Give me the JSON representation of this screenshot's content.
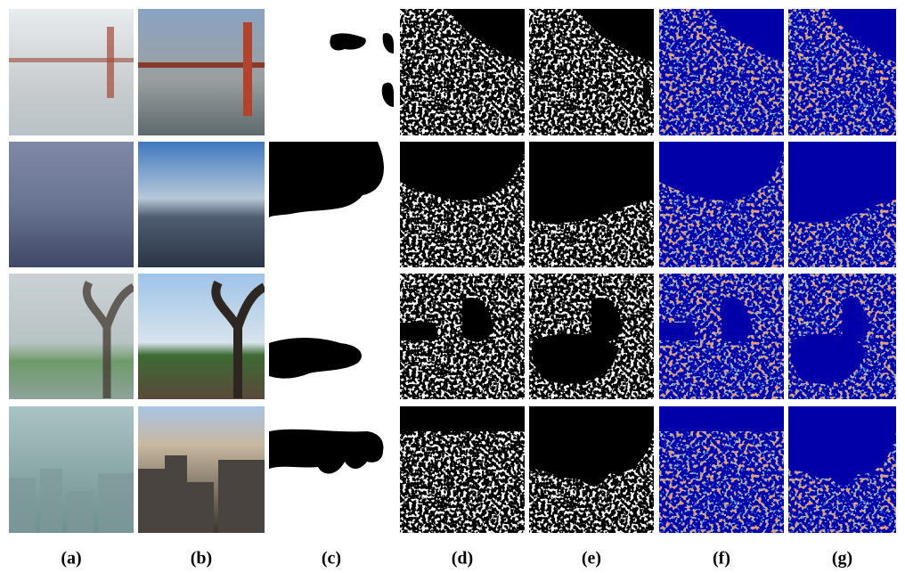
{
  "figure": {
    "labels": [
      "(a)",
      "(b)",
      "(c)",
      "(d)",
      "(e)",
      "(f)",
      "(g)"
    ]
  }
}
